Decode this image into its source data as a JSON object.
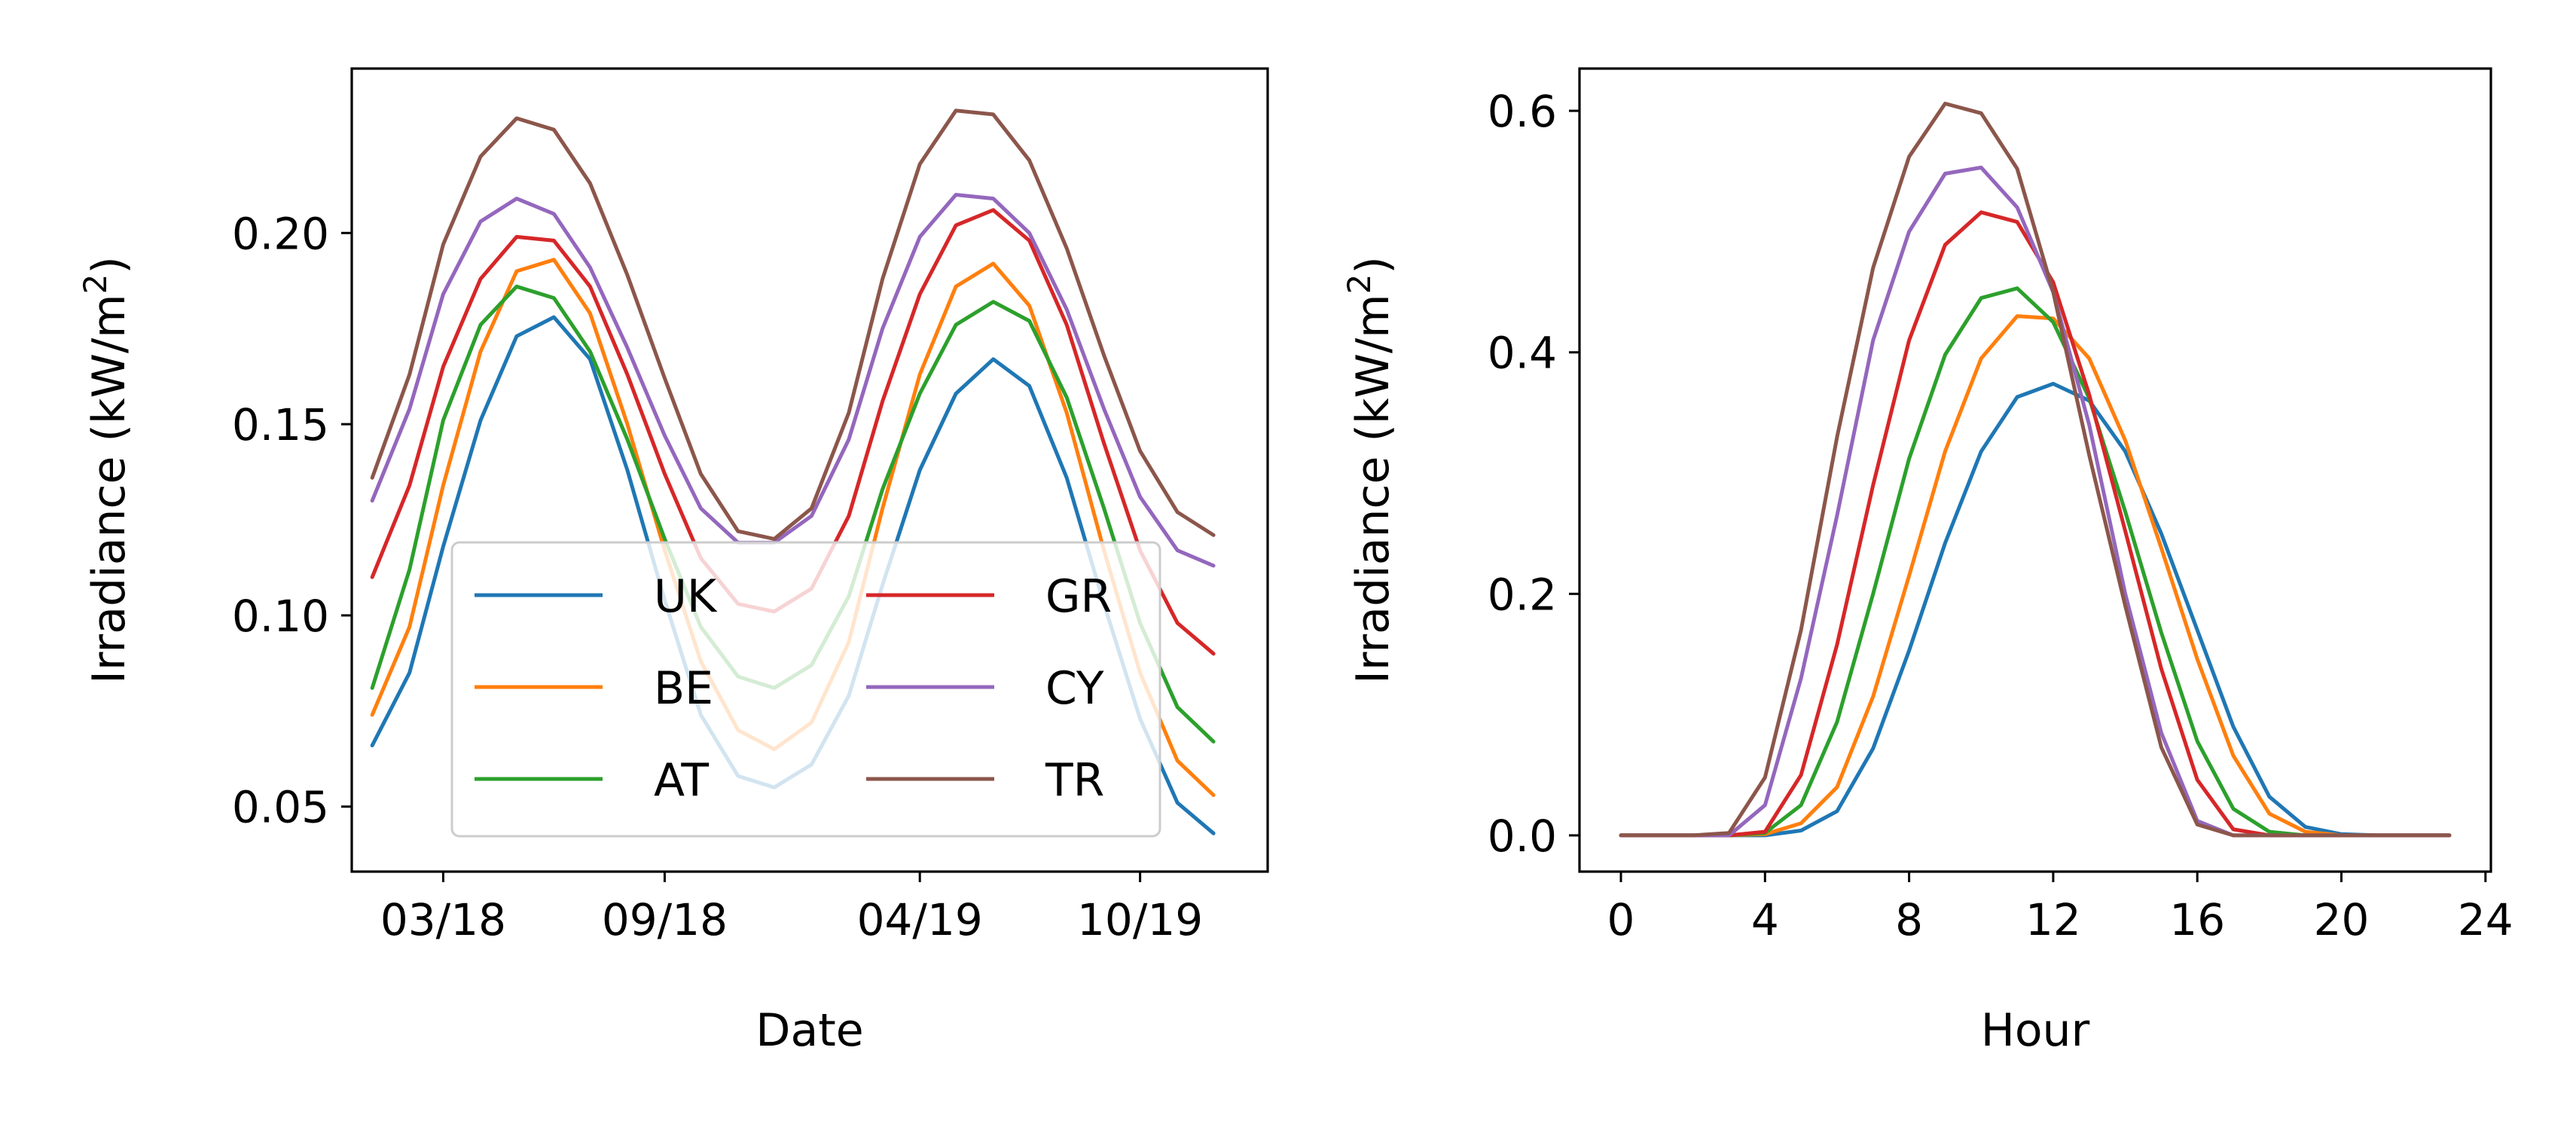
{
  "chart_data": [
    {
      "type": "line",
      "xlabel": "Date",
      "ylabel_main": "Irradiance (kW/m",
      "ylabel_sup": "2",
      "ylabel_close": ")",
      "x": [
        "2018-01-01",
        "2018-02-01",
        "2018-03-01",
        "2018-04-01",
        "2018-05-01",
        "2018-06-01",
        "2018-07-01",
        "2018-08-01",
        "2018-09-01",
        "2018-10-01",
        "2018-11-01",
        "2018-12-01",
        "2019-01-01",
        "2019-02-01",
        "2019-03-01",
        "2019-04-01",
        "2019-05-01",
        "2019-06-01",
        "2019-07-01",
        "2019-08-01",
        "2019-09-01",
        "2019-10-01",
        "2019-11-01",
        "2019-12-01"
      ],
      "xlim": [
        "2017-12-15",
        "2020-01-15"
      ],
      "xticks": [
        "2018-03-01",
        "2018-09-01",
        "2019-04-01",
        "2019-10-01"
      ],
      "xtick_labels": [
        "03/18",
        "09/18",
        "04/19",
        "10/19"
      ],
      "ylim": [
        0.033,
        0.243
      ],
      "yticks": [
        0.05,
        0.1,
        0.15,
        0.2
      ],
      "ytick_labels": [
        "0.05",
        "0.10",
        "0.15",
        "0.20"
      ],
      "legend_position": "lower center",
      "legend_columns": 2,
      "series": [
        {
          "name": "UK",
          "color": "#1f77b4",
          "values": [
            0.066,
            0.085,
            0.118,
            0.151,
            0.173,
            0.178,
            0.167,
            0.138,
            0.104,
            0.074,
            0.058,
            0.055,
            0.061,
            0.079,
            0.108,
            0.138,
            0.158,
            0.167,
            0.16,
            0.136,
            0.103,
            0.073,
            0.051,
            0.043
          ]
        },
        {
          "name": "BE",
          "color": "#ff7f0e",
          "values": [
            0.074,
            0.097,
            0.134,
            0.169,
            0.19,
            0.193,
            0.179,
            0.15,
            0.117,
            0.088,
            0.07,
            0.065,
            0.072,
            0.093,
            0.128,
            0.163,
            0.186,
            0.192,
            0.181,
            0.153,
            0.117,
            0.085,
            0.062,
            0.053
          ]
        },
        {
          "name": "AT",
          "color": "#2ca02c",
          "values": [
            0.081,
            0.112,
            0.151,
            0.176,
            0.186,
            0.183,
            0.169,
            0.146,
            0.12,
            0.097,
            0.084,
            0.081,
            0.087,
            0.105,
            0.133,
            0.158,
            0.176,
            0.182,
            0.177,
            0.157,
            0.128,
            0.098,
            0.076,
            0.067
          ]
        },
        {
          "name": "GR",
          "color": "#d62728",
          "values": [
            0.11,
            0.134,
            0.165,
            0.188,
            0.199,
            0.198,
            0.186,
            0.163,
            0.137,
            0.115,
            0.103,
            0.101,
            0.107,
            0.126,
            0.156,
            0.184,
            0.202,
            0.206,
            0.198,
            0.176,
            0.145,
            0.117,
            0.098,
            0.09
          ]
        },
        {
          "name": "CY",
          "color": "#9467bd",
          "values": [
            0.13,
            0.154,
            0.184,
            0.203,
            0.209,
            0.205,
            0.191,
            0.17,
            0.147,
            0.128,
            0.119,
            0.119,
            0.126,
            0.146,
            0.175,
            0.199,
            0.21,
            0.209,
            0.2,
            0.18,
            0.154,
            0.131,
            0.117,
            0.113
          ]
        },
        {
          "name": "TR",
          "color": "#8c564b",
          "values": [
            0.136,
            0.163,
            0.197,
            0.22,
            0.23,
            0.227,
            0.213,
            0.189,
            0.162,
            0.137,
            0.122,
            0.12,
            0.128,
            0.153,
            0.188,
            0.218,
            0.232,
            0.231,
            0.219,
            0.196,
            0.168,
            0.143,
            0.127,
            0.121
          ]
        }
      ]
    },
    {
      "type": "line",
      "xlabel": "Hour",
      "ylabel_main": "Irradiance (kW/m",
      "ylabel_sup": "2",
      "ylabel_close": ")",
      "x": [
        0,
        1,
        2,
        3,
        4,
        5,
        6,
        7,
        8,
        9,
        10,
        11,
        12,
        13,
        14,
        15,
        16,
        17,
        18,
        19,
        20,
        21,
        22,
        23
      ],
      "xlim": [
        -1.15,
        24.15
      ],
      "xticks": [
        0,
        4,
        8,
        12,
        16,
        20,
        24
      ],
      "xtick_labels": [
        "0",
        "4",
        "8",
        "12",
        "16",
        "20",
        "24"
      ],
      "ylim": [
        -0.03,
        0.635
      ],
      "yticks": [
        0.0,
        0.2,
        0.4,
        0.6
      ],
      "ytick_labels": [
        "0.0",
        "0.2",
        "0.4",
        "0.6"
      ],
      "series": [
        {
          "name": "UK",
          "color": "#1f77b4",
          "values": [
            0,
            0,
            0,
            0,
            0.0,
            0.004,
            0.02,
            0.072,
            0.153,
            0.242,
            0.318,
            0.363,
            0.374,
            0.36,
            0.318,
            0.25,
            0.17,
            0.09,
            0.032,
            0.007,
            0.001,
            0,
            0,
            0
          ]
        },
        {
          "name": "BE",
          "color": "#ff7f0e",
          "values": [
            0,
            0,
            0,
            0,
            0.001,
            0.01,
            0.04,
            0.115,
            0.215,
            0.318,
            0.395,
            0.43,
            0.428,
            0.395,
            0.327,
            0.238,
            0.146,
            0.066,
            0.018,
            0.003,
            0,
            0,
            0,
            0
          ]
        },
        {
          "name": "AT",
          "color": "#2ca02c",
          "values": [
            0,
            0,
            0,
            0,
            0.002,
            0.025,
            0.094,
            0.2,
            0.312,
            0.398,
            0.445,
            0.453,
            0.425,
            0.362,
            0.268,
            0.168,
            0.078,
            0.022,
            0.003,
            0,
            0,
            0,
            0,
            0
          ]
        },
        {
          "name": "GR",
          "color": "#d62728",
          "values": [
            0,
            0,
            0,
            0,
            0.003,
            0.05,
            0.158,
            0.29,
            0.41,
            0.489,
            0.516,
            0.508,
            0.458,
            0.365,
            0.252,
            0.138,
            0.046,
            0.005,
            0,
            0,
            0,
            0,
            0,
            0
          ]
        },
        {
          "name": "CY",
          "color": "#9467bd",
          "values": [
            0,
            0,
            0,
            0,
            0.025,
            0.13,
            0.265,
            0.41,
            0.5,
            0.548,
            0.553,
            0.52,
            0.45,
            0.34,
            0.2,
            0.085,
            0.012,
            0,
            0,
            0,
            0,
            0,
            0,
            0
          ]
        },
        {
          "name": "TR",
          "color": "#8c564b",
          "values": [
            0,
            0,
            0,
            0.002,
            0.048,
            0.17,
            0.33,
            0.47,
            0.562,
            0.606,
            0.598,
            0.552,
            0.45,
            0.315,
            0.19,
            0.073,
            0.009,
            0,
            0,
            0,
            0,
            0,
            0,
            0
          ]
        }
      ]
    }
  ]
}
